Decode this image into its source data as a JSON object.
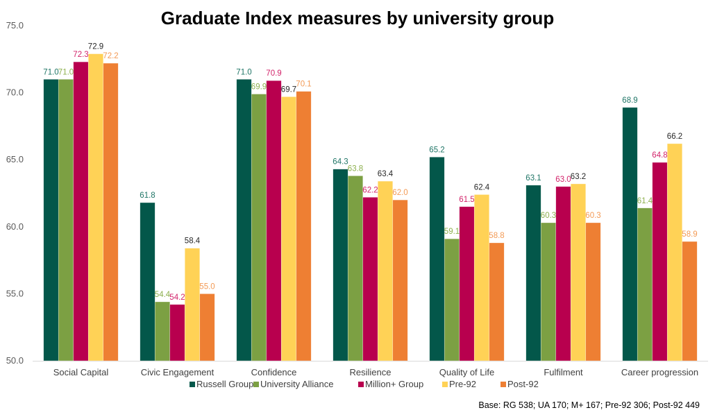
{
  "chart_data": {
    "type": "bar",
    "title": "Graduate Index measures by university group",
    "xlabel": "",
    "ylabel": "",
    "ylim": [
      50,
      75
    ],
    "yticks": [
      "50.0",
      "55.0",
      "60.0",
      "65.0",
      "70.0",
      "75.0"
    ],
    "grid": false,
    "legend_position": "bottom",
    "categories": [
      "Social Capital",
      "Civic Engagement",
      "Confidence",
      "Resilience",
      "Quality of Life",
      "Fulfilment",
      "Career progression"
    ],
    "series": [
      {
        "name": "Russell Group",
        "color": "#03574a",
        "label_color": "#1f7566",
        "values": [
          71.0,
          61.8,
          71.0,
          64.3,
          65.2,
          63.1,
          68.9
        ]
      },
      {
        "name": "University Alliance",
        "color": "#7ca043",
        "label_color": "#8db04e",
        "values": [
          71.0,
          54.4,
          69.9,
          63.8,
          59.1,
          60.3,
          61.4
        ]
      },
      {
        "name": "Million+ Group",
        "color": "#b8004e",
        "label_color": "#d2236a",
        "values": [
          72.3,
          54.2,
          70.9,
          62.2,
          61.5,
          63.0,
          64.8
        ]
      },
      {
        "name": "Pre-92",
        "color": "#ffd256",
        "label_color": "#262626",
        "values": [
          72.9,
          58.4,
          69.7,
          63.4,
          62.4,
          63.2,
          66.2
        ]
      },
      {
        "name": "Post-92",
        "color": "#ee7f33",
        "label_color": "#f39a55",
        "values": [
          72.2,
          55.0,
          70.1,
          62.0,
          58.8,
          60.3,
          58.9
        ]
      }
    ],
    "annotations": [
      "Base: RG 538; UA 170; M+ 167; Pre-92 306; Post-92 449"
    ]
  }
}
